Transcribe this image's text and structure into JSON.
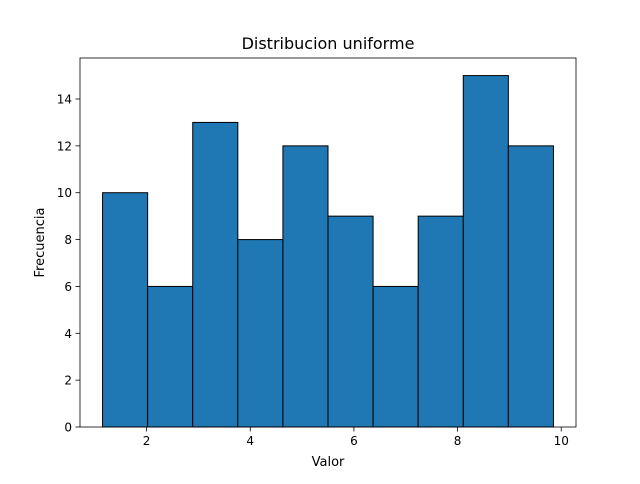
{
  "chart_data": {
    "type": "bar",
    "title": "Distribucion uniforme",
    "xlabel": "Valor",
    "ylabel": "Frecuencia",
    "bin_edges": [
      1.15,
      2.02,
      2.89,
      3.76,
      4.63,
      5.5,
      6.37,
      7.24,
      8.11,
      8.98,
      9.85
    ],
    "values": [
      10,
      6,
      13,
      8,
      12,
      9,
      6,
      9,
      15,
      12
    ],
    "xlim": [
      0.715,
      10.285
    ],
    "ylim": [
      0,
      15.75
    ],
    "xticks": [
      2,
      4,
      6,
      8,
      10
    ],
    "yticks": [
      0,
      2,
      4,
      6,
      8,
      10,
      12,
      14
    ],
    "bar_color": "#1f77b4",
    "edge_color": "#000000",
    "grid": false
  }
}
